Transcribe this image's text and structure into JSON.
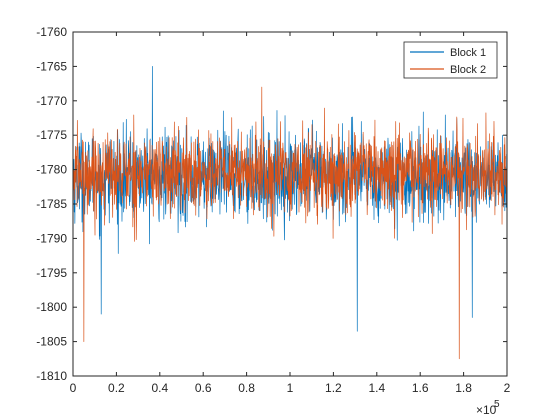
{
  "chart_data": {
    "type": "line",
    "title": "",
    "xlabel": "",
    "ylabel": "",
    "x_exponent_label": "×10",
    "x_exponent_value": "5",
    "xlim": [
      0,
      200000
    ],
    "ylim": [
      -1810,
      -1760
    ],
    "xticks": [
      0,
      20000,
      40000,
      60000,
      80000,
      100000,
      120000,
      140000,
      160000,
      180000,
      200000
    ],
    "xtick_labels": [
      "0",
      "0.2",
      "0.4",
      "0.6",
      "0.8",
      "1",
      "1.2",
      "1.4",
      "1.6",
      "1.8",
      "2"
    ],
    "yticks": [
      -1760,
      -1765,
      -1770,
      -1775,
      -1780,
      -1785,
      -1790,
      -1795,
      -1800,
      -1805,
      -1810
    ],
    "ytick_labels": [
      "-1760",
      "-1765",
      "-1770",
      "-1775",
      "-1780",
      "-1785",
      "-1790",
      "-1795",
      "-1800",
      "-1805",
      "-1810"
    ],
    "grid": false,
    "legend_position": "top-right",
    "series": [
      {
        "name": "Block 1",
        "color": "#0072BD",
        "mean": -1781,
        "std": 3.2,
        "x_range": [
          0,
          200000
        ],
        "notable_points": [
          {
            "x": 36500,
            "y": -1765
          },
          {
            "x": 13000,
            "y": -1801
          },
          {
            "x": 131000,
            "y": -1803.5
          },
          {
            "x": 184000,
            "y": -1801.5
          }
        ]
      },
      {
        "name": "Block 2",
        "color": "#D95319",
        "mean": -1780.5,
        "std": 3.0,
        "x_range": [
          0,
          200000
        ],
        "notable_points": [
          {
            "x": 5000,
            "y": -1805
          },
          {
            "x": 178000,
            "y": -1807.5
          },
          {
            "x": 87000,
            "y": -1768
          }
        ]
      }
    ]
  }
}
